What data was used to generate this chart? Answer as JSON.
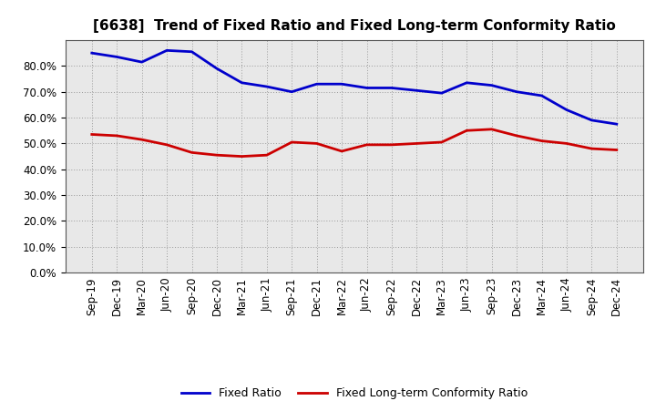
{
  "title": "[6638]  Trend of Fixed Ratio and Fixed Long-term Conformity Ratio",
  "x_labels": [
    "Sep-19",
    "Dec-19",
    "Mar-20",
    "Jun-20",
    "Sep-20",
    "Dec-20",
    "Mar-21",
    "Jun-21",
    "Sep-21",
    "Dec-21",
    "Mar-22",
    "Jun-22",
    "Sep-22",
    "Dec-22",
    "Mar-23",
    "Jun-23",
    "Sep-23",
    "Dec-23",
    "Mar-24",
    "Jun-24",
    "Sep-24",
    "Dec-24"
  ],
  "fixed_ratio": [
    85.0,
    83.5,
    81.5,
    86.0,
    85.5,
    79.0,
    73.5,
    72.0,
    70.0,
    73.0,
    73.0,
    71.5,
    71.5,
    70.5,
    69.5,
    73.5,
    72.5,
    70.0,
    68.5,
    63.0,
    59.0,
    57.5
  ],
  "fixed_lt_ratio": [
    53.5,
    53.0,
    51.5,
    49.5,
    46.5,
    45.5,
    45.0,
    45.5,
    50.5,
    50.0,
    47.0,
    49.5,
    49.5,
    50.0,
    50.5,
    55.0,
    55.5,
    53.0,
    51.0,
    50.0,
    48.0,
    47.5
  ],
  "ylim": [
    0,
    90
  ],
  "yticks": [
    0,
    10,
    20,
    30,
    40,
    50,
    60,
    70,
    80
  ],
  "blue_color": "#0000CC",
  "red_color": "#CC0000",
  "plot_bg_color": "#E8E8E8",
  "fig_bg_color": "#FFFFFF",
  "grid_color": "#999999",
  "legend_fixed_ratio": "Fixed Ratio",
  "legend_fixed_lt_ratio": "Fixed Long-term Conformity Ratio",
  "line_width": 2.0,
  "title_fontsize": 11,
  "tick_fontsize": 8.5
}
